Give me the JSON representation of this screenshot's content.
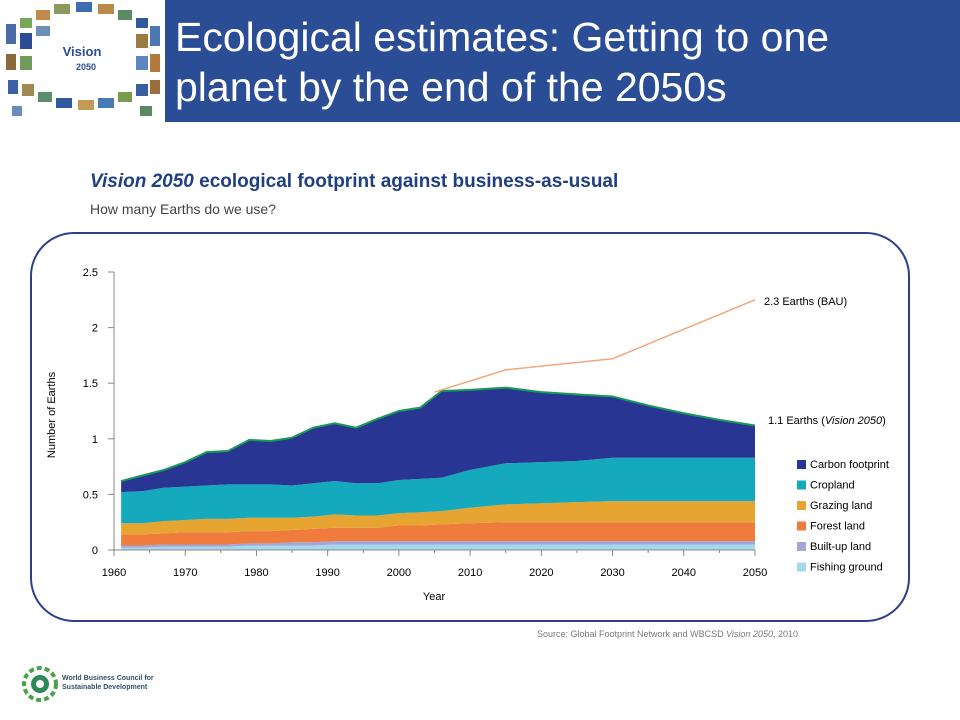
{
  "header": {
    "title_line1": "Ecological estimates: Getting to one",
    "title_line2": "planet by the end of the 2050s",
    "band_color": "#2a4d96",
    "logo_text": "Vision",
    "logo_year": "2050"
  },
  "chart_heading": {
    "italic": "Vision 2050",
    "rest": " ecological footprint against business-as-usual",
    "subtitle": "How many Earths do we use?"
  },
  "source": {
    "prefix": "Source: Global Footprint Network and WBCSD ",
    "italic": "Vision 2050",
    "suffix": ", 2010"
  },
  "footer_logo": {
    "line1": "World Business Council for",
    "line2": "Sustainable Development"
  },
  "chart_data": {
    "type": "area",
    "stacked": true,
    "xlabel": "Year",
    "ylabel": "Number of Earths",
    "xlim": [
      1960,
      2050
    ],
    "ylim": [
      0,
      2.5
    ],
    "xticks": [
      1960,
      1970,
      1980,
      1990,
      2000,
      2010,
      2020,
      2030,
      2040,
      2050
    ],
    "yticks": [
      0,
      0.5,
      1,
      1.5,
      2,
      2.5
    ],
    "ytick_labels": [
      "0",
      "0.5",
      "1",
      "1.5",
      "2",
      "2.5"
    ],
    "legend_position": "right",
    "x": [
      1961,
      1964,
      1967,
      1970,
      1973,
      1976,
      1979,
      1982,
      1985,
      1988,
      1991,
      1994,
      1997,
      2000,
      2003,
      2006,
      2010,
      2015,
      2020,
      2025,
      2030,
      2035,
      2040,
      2045,
      2050
    ],
    "series": [
      {
        "name": "Fishing ground",
        "color": "#a6d8ec",
        "values": [
          0.02,
          0.02,
          0.03,
          0.03,
          0.03,
          0.03,
          0.04,
          0.04,
          0.04,
          0.04,
          0.05,
          0.05,
          0.05,
          0.05,
          0.05,
          0.05,
          0.05,
          0.05,
          0.05,
          0.05,
          0.05,
          0.05,
          0.05,
          0.05,
          0.05
        ]
      },
      {
        "name": "Built-up land",
        "color": "#a3a6d6",
        "values": [
          0.02,
          0.02,
          0.02,
          0.02,
          0.02,
          0.02,
          0.02,
          0.02,
          0.03,
          0.03,
          0.03,
          0.03,
          0.03,
          0.03,
          0.03,
          0.03,
          0.03,
          0.03,
          0.03,
          0.03,
          0.03,
          0.03,
          0.03,
          0.03,
          0.03
        ]
      },
      {
        "name": "Forest land",
        "color": "#ef7b3c",
        "values": [
          0.1,
          0.1,
          0.1,
          0.11,
          0.11,
          0.11,
          0.11,
          0.11,
          0.11,
          0.12,
          0.12,
          0.12,
          0.12,
          0.14,
          0.14,
          0.15,
          0.16,
          0.17,
          0.17,
          0.17,
          0.17,
          0.17,
          0.17,
          0.17,
          0.17
        ]
      },
      {
        "name": "Grazing land",
        "color": "#e6a431",
        "values": [
          0.1,
          0.1,
          0.11,
          0.11,
          0.12,
          0.12,
          0.12,
          0.12,
          0.11,
          0.11,
          0.12,
          0.11,
          0.11,
          0.11,
          0.12,
          0.12,
          0.14,
          0.16,
          0.17,
          0.18,
          0.19,
          0.19,
          0.19,
          0.19,
          0.19
        ]
      },
      {
        "name": "Cropland",
        "color": "#14a9bd",
        "values": [
          0.28,
          0.29,
          0.3,
          0.3,
          0.3,
          0.31,
          0.3,
          0.3,
          0.29,
          0.3,
          0.3,
          0.29,
          0.29,
          0.3,
          0.3,
          0.3,
          0.34,
          0.37,
          0.37,
          0.37,
          0.39,
          0.39,
          0.39,
          0.39,
          0.39
        ]
      },
      {
        "name": "Carbon footprint",
        "color": "#283593",
        "values": [
          0.1,
          0.14,
          0.16,
          0.22,
          0.3,
          0.3,
          0.4,
          0.39,
          0.43,
          0.5,
          0.52,
          0.5,
          0.58,
          0.62,
          0.64,
          0.78,
          0.72,
          0.68,
          0.63,
          0.6,
          0.55,
          0.47,
          0.4,
          0.34,
          0.29
        ]
      }
    ],
    "bau_line": {
      "color": "#f1a77a",
      "x": [
        2005,
        2015,
        2030,
        2050
      ],
      "values": [
        1.42,
        1.62,
        1.72,
        2.25
      ]
    },
    "vision_outline_color": "#1a9a57",
    "annotations": [
      {
        "text": "2.3 Earths (BAU)",
        "x": 2050,
        "y": 2.25
      },
      {
        "text_prefix": "1.1 Earths (",
        "text_italic": "Vision 2050",
        "text_suffix": ")",
        "x": 2050,
        "y": 1.12
      }
    ]
  }
}
